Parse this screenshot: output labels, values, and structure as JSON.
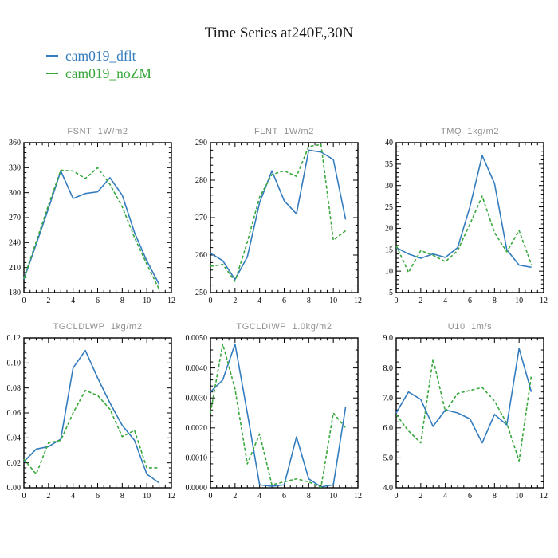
{
  "title": "Time Series at240E,30N",
  "legend": [
    {
      "label": "cam019_dflt",
      "color": "#337CBE"
    },
    {
      "label": "cam019_noZM",
      "color": "#38A83C"
    }
  ],
  "colors": {
    "axis": "#000000",
    "chart_title_gray": "#8f8f8f",
    "background": "#ffffff"
  },
  "chart_data": [
    {
      "id": "fsnt",
      "type": "line",
      "title": "FSNT  1W/m2",
      "x": [
        0,
        1,
        2,
        3,
        4,
        5,
        6,
        7,
        8,
        9,
        10,
        11
      ],
      "xlim": [
        0,
        12
      ],
      "ylim": [
        180,
        360
      ],
      "xticks": {
        "major": 2,
        "minor": 0.5,
        "labels": [
          "0",
          "2",
          "4",
          "6",
          "8",
          "10",
          "12"
        ]
      },
      "yticks": {
        "major": 30,
        "minor": 6,
        "labels": [
          "180",
          "210",
          "240",
          "270",
          "300",
          "330",
          "360"
        ]
      },
      "series": [
        {
          "name": "cam019_dflt",
          "color": "#337CBE",
          "dashed": false,
          "values": [
            196,
            238,
            281,
            326,
            293,
            299,
            301,
            318,
            297,
            252,
            218,
            190
          ]
        },
        {
          "name": "cam019_noZM",
          "color": "#38A83C",
          "dashed": true,
          "values": [
            197,
            241,
            285,
            327,
            326,
            317,
            330,
            310,
            283,
            246,
            214,
            184
          ]
        }
      ]
    },
    {
      "id": "flnt",
      "type": "line",
      "title": "FLNT  1W/m2",
      "x": [
        0,
        1,
        2,
        3,
        4,
        5,
        6,
        7,
        8,
        9,
        10,
        11
      ],
      "xlim": [
        0,
        12
      ],
      "ylim": [
        250,
        290
      ],
      "xticks": {
        "major": 2,
        "minor": 0.5,
        "labels": [
          "0",
          "2",
          "4",
          "6",
          "8",
          "10",
          "12"
        ]
      },
      "yticks": {
        "major": 10,
        "minor": 2,
        "labels": [
          "250",
          "260",
          "270",
          "280",
          "290"
        ]
      },
      "series": [
        {
          "name": "cam019_dflt",
          "color": "#337CBE",
          "dashed": false,
          "values": [
            260.5,
            258.5,
            253.5,
            259.5,
            274,
            282.5,
            274.5,
            271,
            288,
            287.5,
            285.5,
            269.5
          ]
        },
        {
          "name": "cam019_noZM",
          "color": "#38A83C",
          "dashed": true,
          "values": [
            257,
            257.5,
            253,
            263.5,
            275.5,
            281.5,
            282.5,
            281,
            289,
            289.5,
            264,
            266.5
          ]
        }
      ]
    },
    {
      "id": "tmq",
      "type": "line",
      "title": "TMQ  1kg/m2",
      "x": [
        0,
        1,
        2,
        3,
        4,
        5,
        6,
        7,
        8,
        9,
        10,
        11
      ],
      "xlim": [
        0,
        12
      ],
      "ylim": [
        5,
        40
      ],
      "xticks": {
        "major": 2,
        "minor": 0.5,
        "labels": [
          "0",
          "2",
          "4",
          "6",
          "8",
          "10",
          "12"
        ]
      },
      "yticks": {
        "major": 5,
        "minor": 1,
        "labels": [
          "5",
          "10",
          "15",
          "20",
          "25",
          "30",
          "35",
          "40"
        ]
      },
      "series": [
        {
          "name": "cam019_dflt",
          "color": "#337CBE",
          "dashed": false,
          "values": [
            15.5,
            14,
            13,
            14,
            13.2,
            15.5,
            25,
            37,
            30.5,
            15,
            11.4,
            10.9
          ]
        },
        {
          "name": "cam019_noZM",
          "color": "#38A83C",
          "dashed": true,
          "values": [
            16,
            9.7,
            14.8,
            13.7,
            12.2,
            14.8,
            21,
            27.5,
            19,
            14.5,
            19.5,
            11.5
          ]
        }
      ]
    },
    {
      "id": "tgcldlwp",
      "type": "line",
      "title": "TGCLDLWP  1kg/m2",
      "x": [
        0,
        1,
        2,
        3,
        4,
        5,
        6,
        7,
        8,
        9,
        10,
        11
      ],
      "xlim": [
        0,
        12
      ],
      "ylim": [
        0,
        0.12
      ],
      "xticks": {
        "major": 2,
        "minor": 0.5,
        "labels": [
          "0",
          "2",
          "4",
          "6",
          "8",
          "10",
          "12"
        ]
      },
      "yticks": {
        "major": 0.02,
        "minor": 0.004,
        "labels": [
          "0.00",
          "0.02",
          "0.04",
          "0.06",
          "0.08",
          "0.10",
          "0.12"
        ]
      },
      "series": [
        {
          "name": "cam019_dflt",
          "color": "#337CBE",
          "dashed": false,
          "values": [
            0.021,
            0.031,
            0.033,
            0.039,
            0.096,
            0.11,
            0.088,
            0.068,
            0.05,
            0.038,
            0.011,
            0.004
          ]
        },
        {
          "name": "cam019_noZM",
          "color": "#38A83C",
          "dashed": true,
          "values": [
            0.023,
            0.011,
            0.036,
            0.038,
            0.06,
            0.078,
            0.074,
            0.063,
            0.041,
            0.046,
            0.016,
            0.016
          ]
        }
      ]
    },
    {
      "id": "tgcldiwp",
      "type": "line",
      "title": "TGCLDIWP  1.0kg/m2",
      "x": [
        0,
        1,
        2,
        3,
        4,
        5,
        6,
        7,
        8,
        9,
        10,
        11
      ],
      "xlim": [
        0,
        12
      ],
      "ylim": [
        0,
        0.005
      ],
      "xticks": {
        "major": 2,
        "minor": 0.5,
        "labels": [
          "0",
          "2",
          "4",
          "6",
          "8",
          "10",
          "12"
        ]
      },
      "yticks": {
        "major": 0.001,
        "minor": 0.0002,
        "labels": [
          "0.0000",
          "0.0010",
          "0.0020",
          "0.0030",
          "0.0040",
          "0.0050"
        ]
      },
      "series": [
        {
          "name": "cam019_dflt",
          "color": "#337CBE",
          "dashed": false,
          "values": [
            0.0032,
            0.0036,
            0.0048,
            0.0025,
            0.0001,
            5e-05,
            0.0001,
            0.0017,
            0.0003,
            3e-05,
            0.0001,
            0.0027
          ]
        },
        {
          "name": "cam019_noZM",
          "color": "#38A83C",
          "dashed": true,
          "values": [
            0.0025,
            0.0048,
            0.0033,
            0.0008,
            0.0018,
            0.0001,
            0.0002,
            0.0003,
            0.0002,
            2e-05,
            0.0025,
            0.002
          ]
        }
      ]
    },
    {
      "id": "u10",
      "type": "line",
      "title": "U10  1m/s",
      "x": [
        0,
        1,
        2,
        3,
        4,
        5,
        6,
        7,
        8,
        9,
        10,
        11
      ],
      "xlim": [
        0,
        12
      ],
      "ylim": [
        4,
        9
      ],
      "xticks": {
        "major": 2,
        "minor": 0.5,
        "labels": [
          "0",
          "2",
          "4",
          "6",
          "8",
          "10",
          "12"
        ]
      },
      "yticks": {
        "major": 1,
        "minor": 0.2,
        "labels": [
          "4.0",
          "5.0",
          "6.0",
          "7.0",
          "8.0",
          "9.0"
        ]
      },
      "series": [
        {
          "name": "cam019_dflt",
          "color": "#337CBE",
          "dashed": false,
          "values": [
            6.5,
            7.2,
            6.95,
            6.05,
            6.6,
            6.5,
            6.3,
            5.5,
            6.45,
            6.1,
            8.65,
            7.2
          ]
        },
        {
          "name": "cam019_noZM",
          "color": "#38A83C",
          "dashed": true,
          "values": [
            6.45,
            5.9,
            5.5,
            8.3,
            6.55,
            7.15,
            7.25,
            7.35,
            6.9,
            6.15,
            4.9,
            7.75
          ]
        }
      ]
    }
  ]
}
